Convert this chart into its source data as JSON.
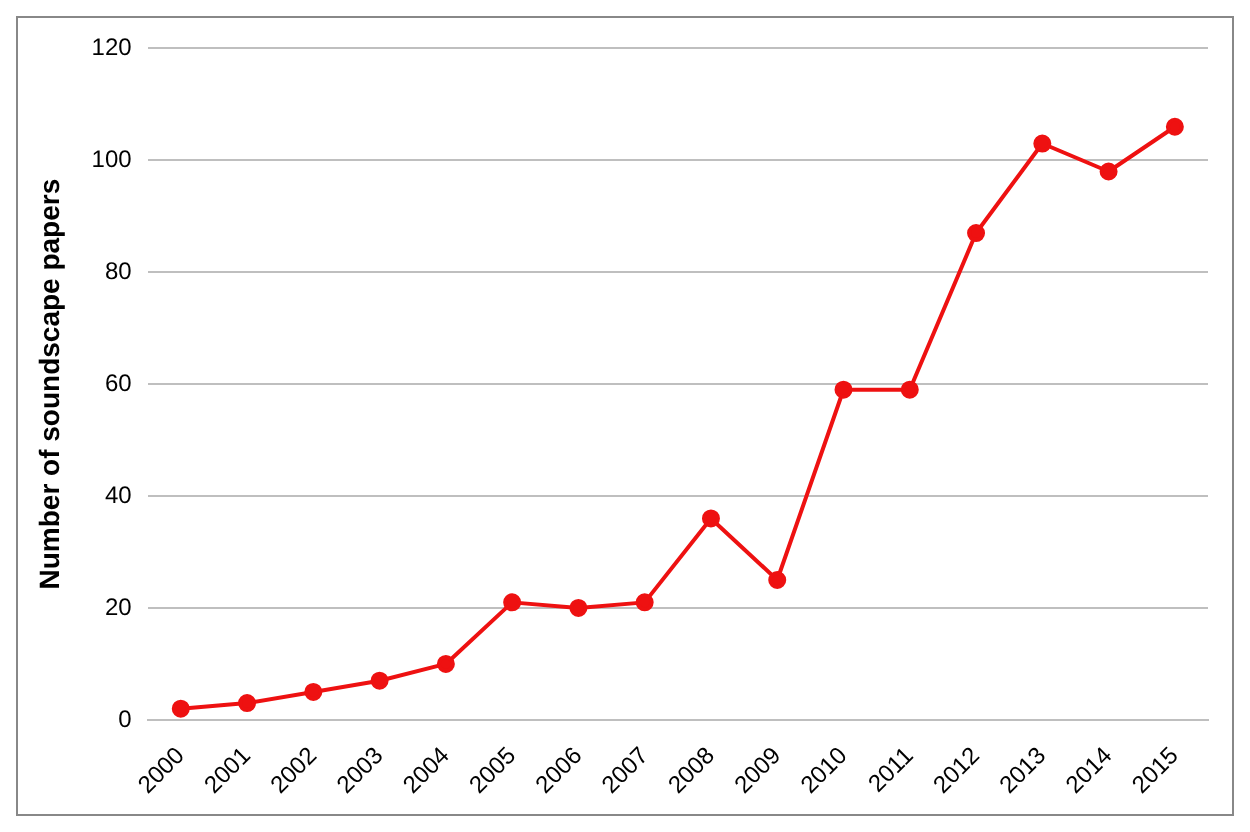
{
  "chart_data": {
    "type": "line",
    "ylabel": "Number of soundscape papers",
    "categories": [
      "2000",
      "2001",
      "2002",
      "2003",
      "2004",
      "2005",
      "2006",
      "2007",
      "2008",
      "2009",
      "2010",
      "2011",
      "2012",
      "2013",
      "2014",
      "2015"
    ],
    "series": [
      {
        "color": "#ee1111",
        "values": [
          2,
          3,
          5,
          7,
          10,
          21,
          20,
          21,
          36,
          25,
          59,
          59,
          87,
          103,
          98,
          106
        ]
      }
    ],
    "ylim": [
      0,
      120
    ],
    "yticks": [
      0,
      20,
      40,
      60,
      80,
      100,
      120
    ],
    "grid": "y",
    "legend": false,
    "marker": "circle",
    "line_style": "solid"
  }
}
